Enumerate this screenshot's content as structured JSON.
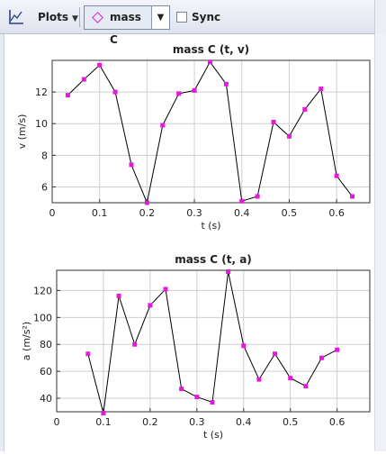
{
  "toolbar": {
    "plots_label": "Plots",
    "selector_value": "mass C",
    "sync_label": "Sync",
    "sync_checked": false
  },
  "colors": {
    "point": "#e31ad9",
    "line": "#000000",
    "grid": "#cfcfcf"
  },
  "chart_data": [
    {
      "type": "line",
      "title": "mass C (t, v)",
      "xlabel": "t (s)",
      "ylabel": "v (m/s)",
      "xlim": [
        0,
        0.67
      ],
      "ylim": [
        5.0,
        14.0
      ],
      "xticks": [
        0,
        0.1,
        0.2,
        0.3,
        0.4,
        0.5,
        0.6
      ],
      "xtick_labels": [
        "0",
        "0.1",
        "0.2",
        "0.3",
        "0.4",
        "0.5",
        "0.6"
      ],
      "yticks": [
        6,
        8,
        10,
        12
      ],
      "ytick_labels": [
        "6",
        "8",
        "10",
        "12"
      ],
      "grid": true,
      "x": [
        0.033,
        0.067,
        0.1,
        0.133,
        0.167,
        0.2,
        0.233,
        0.267,
        0.3,
        0.333,
        0.367,
        0.4,
        0.433,
        0.467,
        0.5,
        0.533,
        0.567,
        0.6,
        0.633
      ],
      "y": [
        11.8,
        12.8,
        13.7,
        12.0,
        7.4,
        5.0,
        9.9,
        11.9,
        12.1,
        13.9,
        12.5,
        5.1,
        5.4,
        10.1,
        9.2,
        10.9,
        12.2,
        6.7,
        5.4
      ]
    },
    {
      "type": "line",
      "title": "mass C (t, a)",
      "xlabel": "t (s)",
      "ylabel": "a (m/s²)",
      "xlim": [
        0,
        0.67
      ],
      "ylim": [
        30,
        135
      ],
      "xticks": [
        0,
        0.1,
        0.2,
        0.3,
        0.4,
        0.5,
        0.6
      ],
      "xtick_labels": [
        "0",
        "0.1",
        "0.2",
        "0.3",
        "0.4",
        "0.5",
        "0.6"
      ],
      "yticks": [
        40,
        60,
        80,
        100,
        120
      ],
      "ytick_labels": [
        "40",
        "60",
        "80",
        "100",
        "120"
      ],
      "grid": true,
      "x": [
        0.067,
        0.1,
        0.133,
        0.167,
        0.2,
        0.233,
        0.267,
        0.3,
        0.333,
        0.367,
        0.4,
        0.433,
        0.467,
        0.5,
        0.533,
        0.567,
        0.6
      ],
      "y": [
        73,
        29,
        116,
        80,
        109,
        121,
        47,
        41,
        37,
        134,
        79,
        54,
        73,
        55,
        49,
        70,
        76
      ]
    }
  ]
}
